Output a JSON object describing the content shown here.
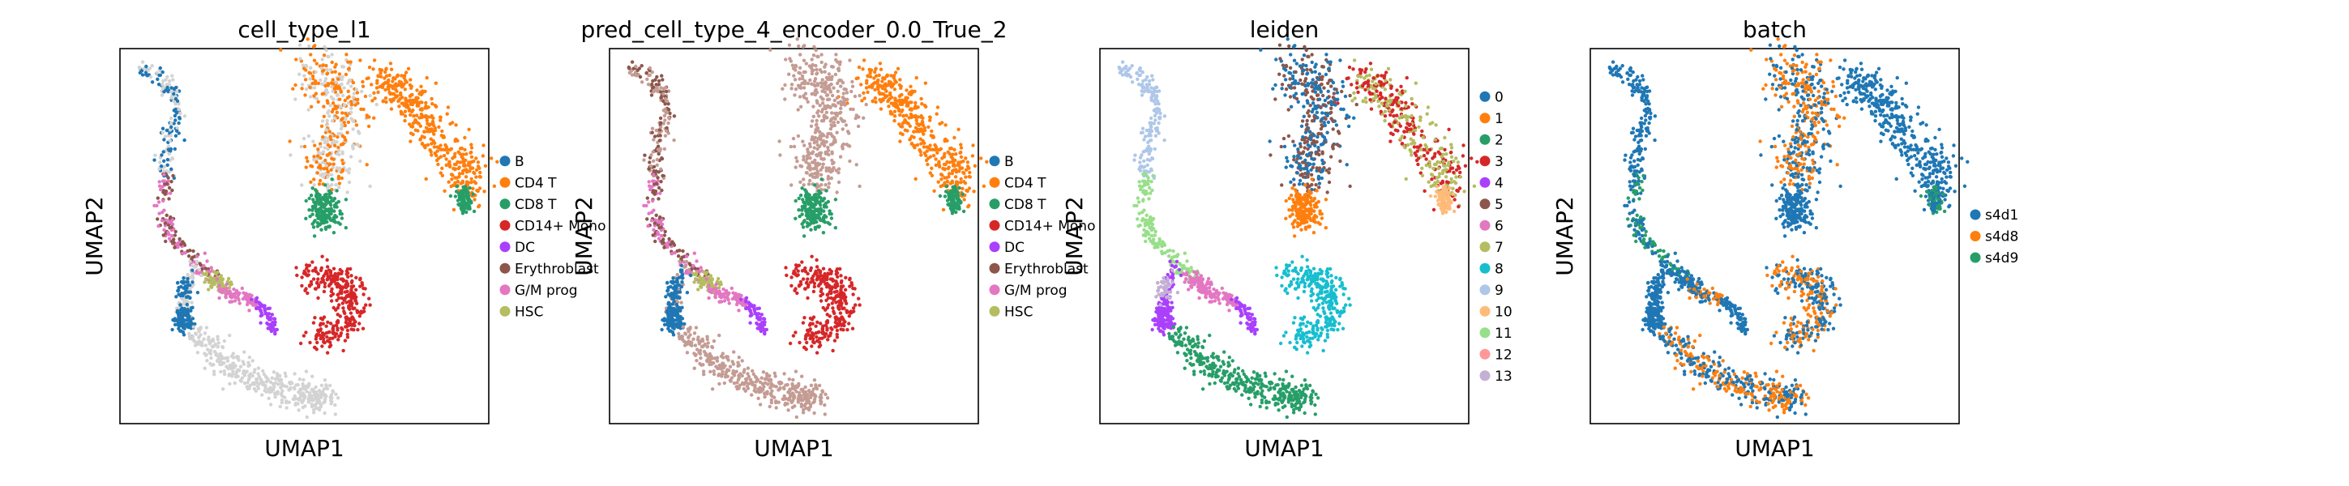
{
  "chart_data": [
    {
      "type": "scatter",
      "title": "cell_type_l1",
      "xlabel": "UMAP1",
      "ylabel": "UMAP2",
      "legend_placement": "right",
      "legend": [
        {
          "label": "B",
          "color": "#1f77b4"
        },
        {
          "label": "CD4 T",
          "color": "#ff7f0e"
        },
        {
          "label": "CD8 T",
          "color": "#279e68"
        },
        {
          "label": "CD14+ Mono",
          "color": "#d62728"
        },
        {
          "label": "DC",
          "color": "#aa40fc"
        },
        {
          "label": "Erythroblast",
          "color": "#8c564b"
        },
        {
          "label": "G/M prog",
          "color": "#e377c2"
        },
        {
          "label": "HSC",
          "color": "#b5bd61"
        }
      ],
      "unlabeled_color": "#d3d3d3"
    },
    {
      "type": "scatter",
      "title": "pred_cell_type_4_encoder_0.0_True_2",
      "xlabel": "UMAP1",
      "ylabel": "UMAP2",
      "legend_placement": "right",
      "legend": [
        {
          "label": "B",
          "color": "#1f77b4"
        },
        {
          "label": "CD4 T",
          "color": "#ff7f0e"
        },
        {
          "label": "CD8 T",
          "color": "#279e68"
        },
        {
          "label": "CD14+ Mono",
          "color": "#d62728"
        },
        {
          "label": "DC",
          "color": "#aa40fc"
        },
        {
          "label": "Erythroblast",
          "color": "#8c564b"
        },
        {
          "label": "G/M prog",
          "color": "#e377c2"
        },
        {
          "label": "HSC",
          "color": "#b5bd61"
        }
      ],
      "unlabeled_color": "#c49c94"
    },
    {
      "type": "scatter",
      "title": "leiden",
      "xlabel": "UMAP1",
      "ylabel": "UMAP2",
      "legend_placement": "right",
      "legend": [
        {
          "label": "0",
          "color": "#1f77b4"
        },
        {
          "label": "1",
          "color": "#ff7f0e"
        },
        {
          "label": "2",
          "color": "#279e68"
        },
        {
          "label": "3",
          "color": "#d62728"
        },
        {
          "label": "4",
          "color": "#aa40fc"
        },
        {
          "label": "5",
          "color": "#8c564b"
        },
        {
          "label": "6",
          "color": "#e377c2"
        },
        {
          "label": "7",
          "color": "#b5bd61"
        },
        {
          "label": "8",
          "color": "#17becf"
        },
        {
          "label": "9",
          "color": "#aec7e8"
        },
        {
          "label": "10",
          "color": "#ffbb78"
        },
        {
          "label": "11",
          "color": "#98df8a"
        },
        {
          "label": "12",
          "color": "#ff9896"
        },
        {
          "label": "13",
          "color": "#c5b0d5"
        }
      ]
    },
    {
      "type": "scatter",
      "title": "batch",
      "xlabel": "UMAP1",
      "ylabel": "UMAP2",
      "legend_placement": "right",
      "legend": [
        {
          "label": "s4d1",
          "color": "#1f77b4"
        },
        {
          "label": "s4d8",
          "color": "#ff7f0e"
        },
        {
          "label": "s4d9",
          "color": "#279e68"
        }
      ]
    }
  ]
}
